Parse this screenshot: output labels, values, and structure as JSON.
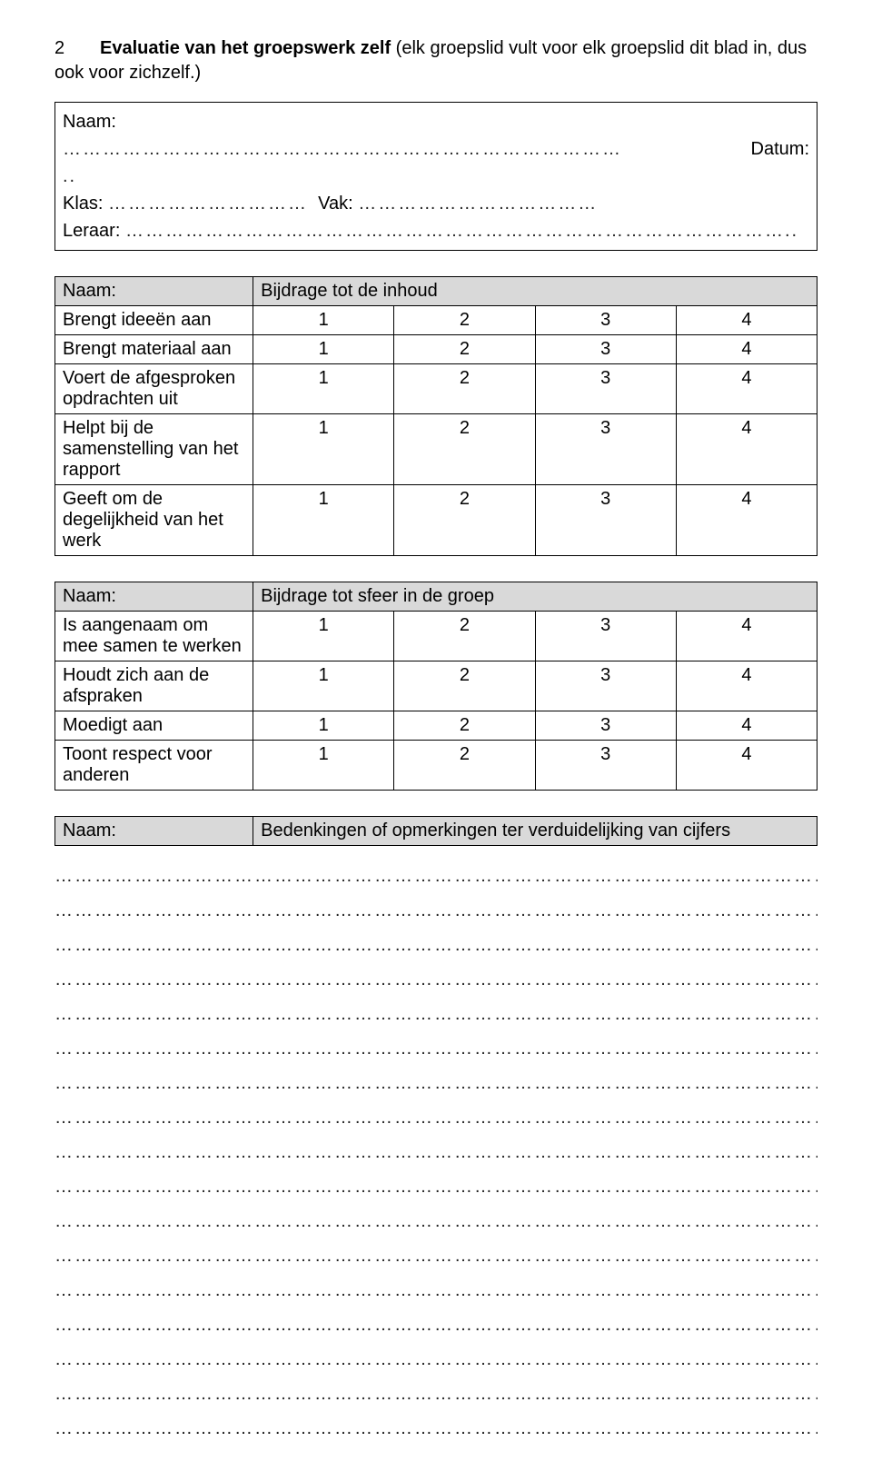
{
  "heading": {
    "number": "2",
    "title_bold": "Evaluatie van het groepswerk zelf",
    "title_rest": " (elk groepslid vult voor elk groepslid dit blad in, dus ook voor zichzelf.)"
  },
  "info": {
    "naam_label": "Naam:",
    "datum_label": "Datum:",
    "klas_label": "Klas:",
    "vak_label": "Vak:",
    "leraar_label": "Leraar:",
    "naam_dots": "…………………………………………………………………………",
    "datum_dots": "",
    "klas_dots": "…………………………",
    "vak_dots": "………………………………",
    "leraar_dots": "………………………………………………………………………………………",
    "spacer_dots": ".."
  },
  "table1": {
    "head_left": "Naam:",
    "head_right": "Bijdrage tot de inhoud",
    "rows": [
      {
        "label": "Brengt ideeën aan",
        "c1": "1",
        "c2": "2",
        "c3": "3",
        "c4": "4"
      },
      {
        "label": "Brengt materiaal aan",
        "c1": "1",
        "c2": "2",
        "c3": "3",
        "c4": "4"
      },
      {
        "label": "Voert de afgesproken opdrachten uit",
        "c1": "1",
        "c2": "2",
        "c3": "3",
        "c4": "4"
      },
      {
        "label": "Helpt bij de samenstelling van het rapport",
        "c1": "1",
        "c2": "2",
        "c3": "3",
        "c4": "4"
      },
      {
        "label": "Geeft om de degelijkheid van het werk",
        "c1": "1",
        "c2": "2",
        "c3": "3",
        "c4": "4"
      }
    ]
  },
  "table2": {
    "head_left": "Naam:",
    "head_right": "Bijdrage tot sfeer in de groep",
    "rows": [
      {
        "label": "Is aangenaam om mee samen te werken",
        "c1": "1",
        "c2": "2",
        "c3": "3",
        "c4": "4"
      },
      {
        "label": "Houdt zich aan de afspraken",
        "c1": "1",
        "c2": "2",
        "c3": "3",
        "c4": "4"
      },
      {
        "label": "Moedigt aan",
        "c1": "1",
        "c2": "2",
        "c3": "3",
        "c4": "4"
      },
      {
        "label": "Toont respect voor anderen",
        "c1": "1",
        "c2": "2",
        "c3": "3",
        "c4": "4"
      }
    ]
  },
  "table3": {
    "head_left": "Naam:",
    "head_right": "Bedenkingen of opmerkingen ter verduidelijking van cijfers"
  },
  "dotted": {
    "line": "…………………………………………………………………………………………………………",
    "count": 17
  },
  "colors": {
    "header_bg": "#d9d9d9",
    "border": "#000000",
    "text": "#000000",
    "background": "#ffffff"
  }
}
